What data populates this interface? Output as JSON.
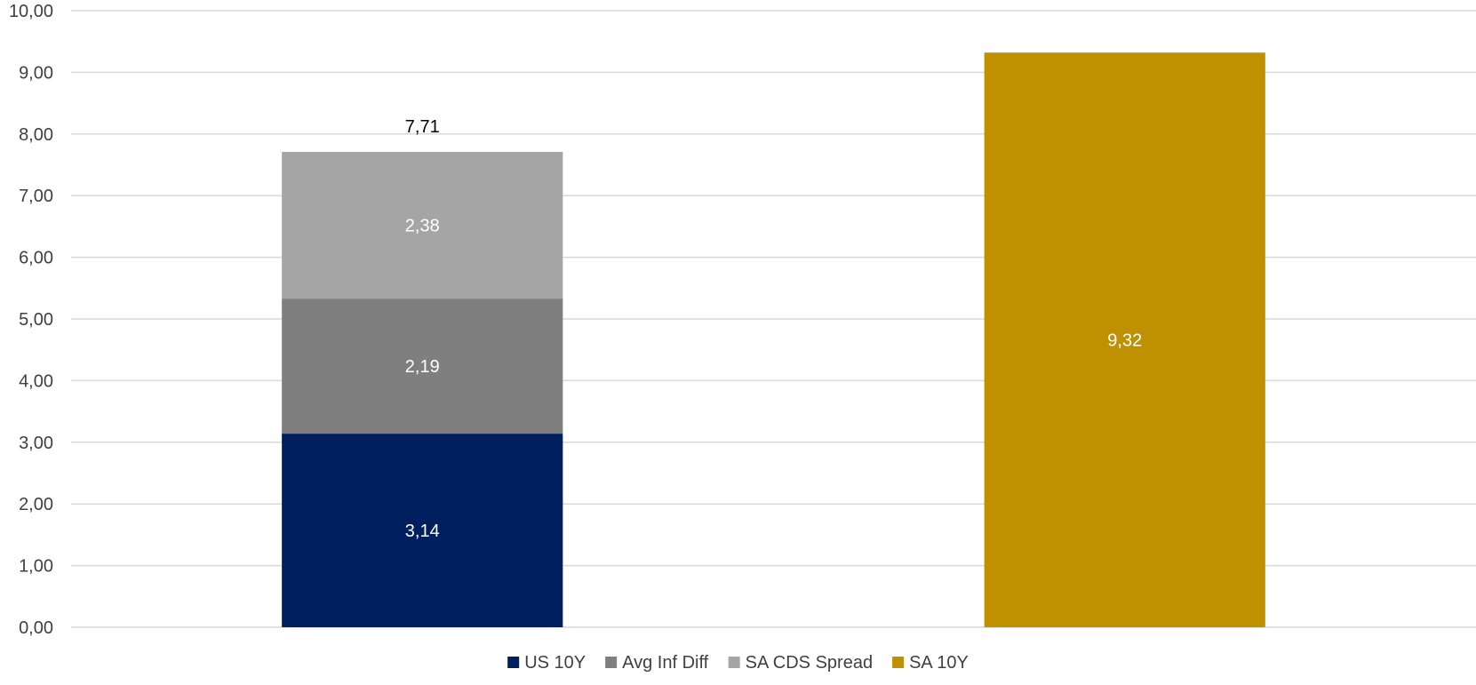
{
  "chart_data": {
    "type": "bar",
    "stacked": true,
    "categories": [
      "",
      ""
    ],
    "ylim": [
      0,
      10
    ],
    "y_ticks": [
      "0,00",
      "1,00",
      "2,00",
      "3,00",
      "4,00",
      "5,00",
      "6,00",
      "7,00",
      "8,00",
      "9,00",
      "10,00"
    ],
    "y_tick_step": 1,
    "grid": true,
    "legend_position": "bottom",
    "series": [
      {
        "name": "US 10Y",
        "color": "#001F5F",
        "values": [
          3.14,
          null
        ],
        "labels": [
          "3,14",
          ""
        ],
        "label_color": "#ffffff"
      },
      {
        "name": "Avg Inf Diff",
        "color": "#7F7F7F",
        "values": [
          2.19,
          null
        ],
        "labels": [
          "2,19",
          ""
        ],
        "label_color": "#ffffff"
      },
      {
        "name": "SA CDS Spread",
        "color": "#A5A5A5",
        "values": [
          2.38,
          null
        ],
        "labels": [
          "2,38",
          ""
        ],
        "label_color": "#ffffff"
      },
      {
        "name": "SA 10Y",
        "color": "#BF9000",
        "values": [
          null,
          9.32
        ],
        "labels": [
          "",
          "9,32"
        ],
        "label_color": "#ffffff"
      }
    ],
    "totals": [
      7.71,
      null
    ],
    "total_labels": [
      "7,71",
      ""
    ],
    "total_label_color": "#000000"
  }
}
